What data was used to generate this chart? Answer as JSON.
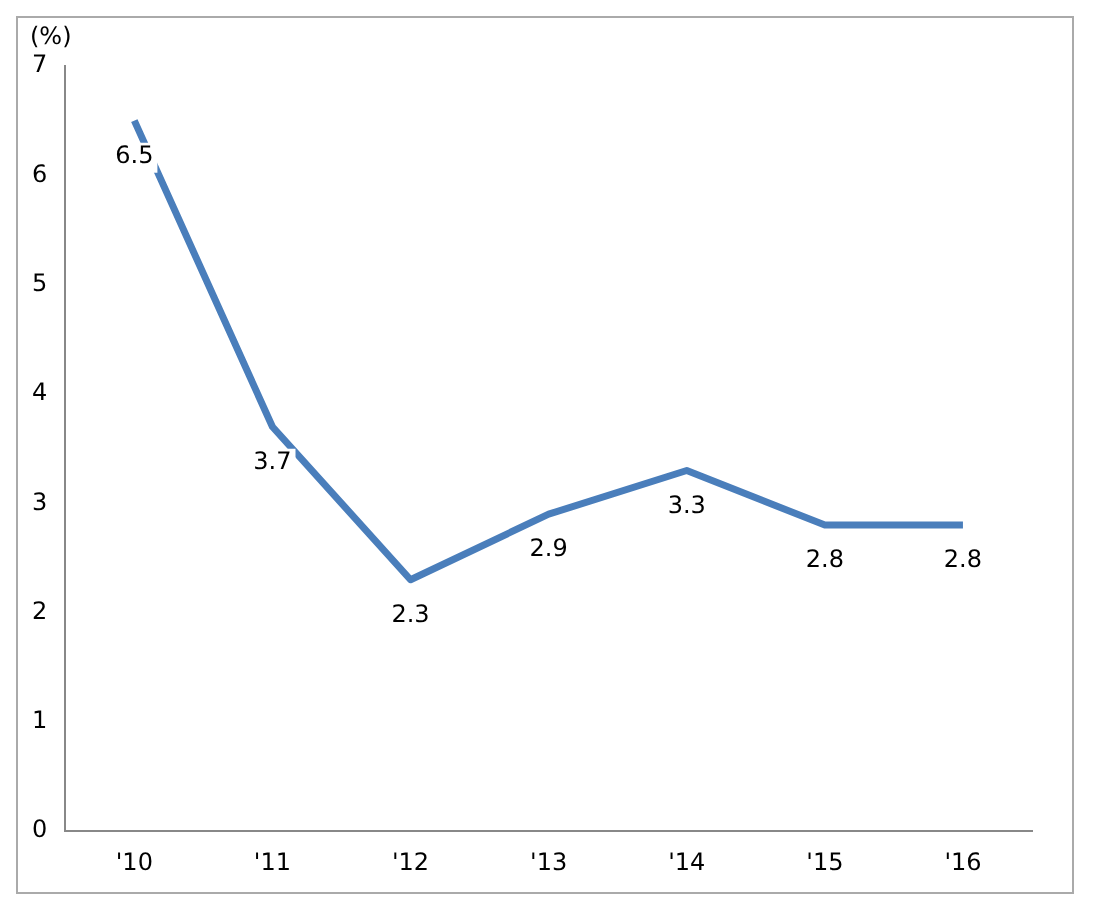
{
  "chart_data": {
    "type": "line",
    "ylabel": "(%)",
    "categories": [
      "'10",
      "'11",
      "'12",
      "'13",
      "'14",
      "'15",
      "'16"
    ],
    "series": [
      {
        "color": "#4a7ebb",
        "values": [
          6.5,
          3.7,
          2.3,
          2.9,
          3.3,
          2.8,
          2.8
        ]
      }
    ],
    "ylim": [
      0,
      7
    ],
    "yticks": [
      0,
      1,
      2,
      3,
      4,
      5,
      6,
      7
    ],
    "grid": false,
    "legend": false,
    "marker": "none",
    "line_style": "solid",
    "data_labels": true
  }
}
